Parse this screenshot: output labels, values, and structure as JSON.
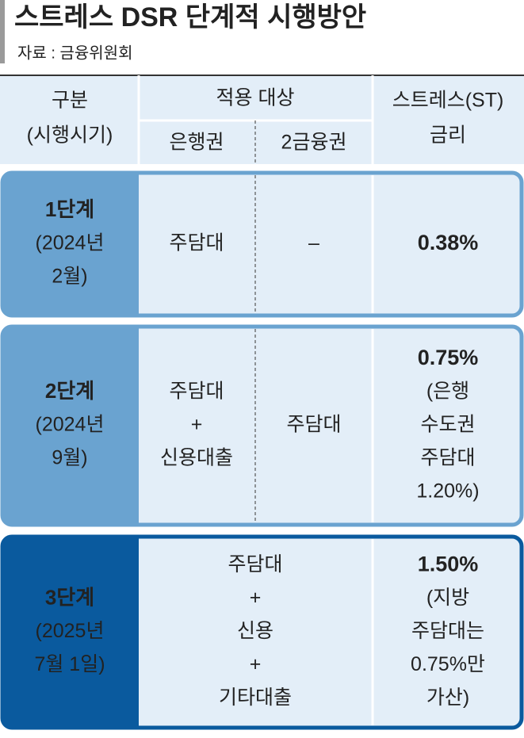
{
  "header": {
    "title": "스트레스 DSR 단계적 시행방안",
    "source": "자료 : 금융위원회"
  },
  "table": {
    "columns": {
      "category": [
        "구분",
        "(시행시기)"
      ],
      "target": "적용 대상",
      "banks": "은행권",
      "secondary": "2금융권",
      "rate": [
        "스트레스(ST)",
        "금리"
      ]
    },
    "rows": [
      {
        "stage": "1단계",
        "period": [
          "(2024년",
          "2월)"
        ],
        "banks": [
          "주담대"
        ],
        "secondary": [
          "–"
        ],
        "rate": [
          "0.38%"
        ]
      },
      {
        "stage": "2단계",
        "period": [
          "(2024년",
          "9월)"
        ],
        "banks": [
          "주담대",
          "+",
          "신용대출"
        ],
        "secondary": [
          "주담대"
        ],
        "rate": [
          "0.75%",
          "(은행",
          "수도권",
          "주담대",
          "1.20%)"
        ]
      },
      {
        "stage": "3단계",
        "period": [
          "(2025년",
          "7월 1일)"
        ],
        "target": [
          "주담대",
          "+",
          "신용",
          "+",
          "기타대출"
        ],
        "rate": [
          "1.50%",
          "(지방",
          "주담대는",
          "0.75%만",
          "가산)"
        ]
      }
    ]
  }
}
